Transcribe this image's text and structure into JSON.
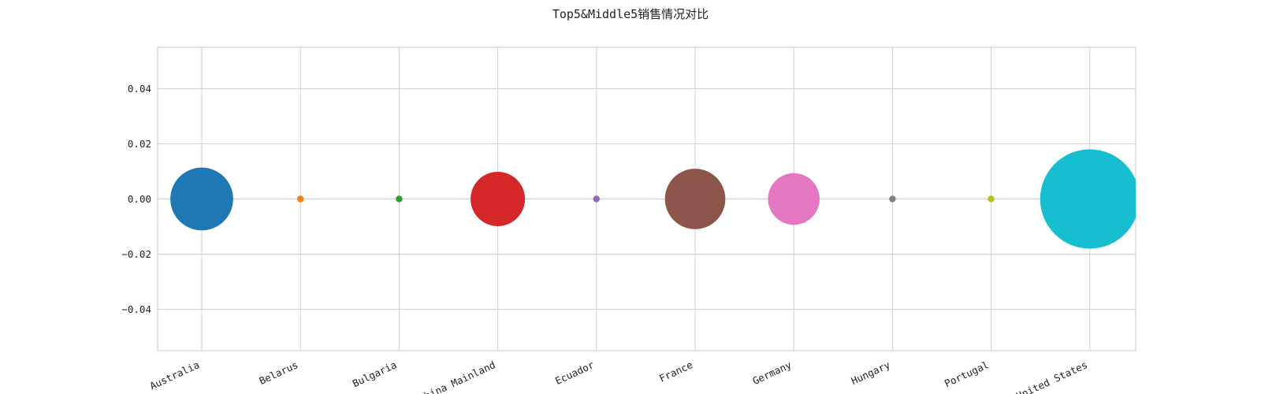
{
  "chart_data": {
    "type": "scatter",
    "title": "Top5&Middle5销售情况对比",
    "xlabel": "",
    "ylabel": "",
    "categories": [
      "Australia",
      "Belarus",
      "Bulgaria",
      "China Mainland",
      "Ecuador",
      "France",
      "Germany",
      "Hungary",
      "Portugal",
      "United States"
    ],
    "values": [
      0,
      0,
      0,
      0,
      0,
      0,
      0,
      0,
      0,
      0
    ],
    "bubble_size_relative": [
      0.4,
      0.0027,
      0.0027,
      0.3,
      0.0027,
      0.37,
      0.27,
      0.0027,
      0.0027,
      1.0
    ],
    "colors": [
      "#1f77b4",
      "#ff7f0e",
      "#2ca02c",
      "#d62728",
      "#9467bd",
      "#8c564b",
      "#e377c2",
      "#7f7f7f",
      "#bcbd22",
      "#17becf"
    ],
    "ylim": [
      -0.055,
      0.055
    ],
    "yticks": [
      -0.04,
      -0.02,
      0.0,
      0.02,
      0.04
    ],
    "ytick_labels": [
      "−0.04",
      "−0.02",
      "0.00",
      "0.02",
      "0.04"
    ],
    "grid": true,
    "legend": "none"
  }
}
